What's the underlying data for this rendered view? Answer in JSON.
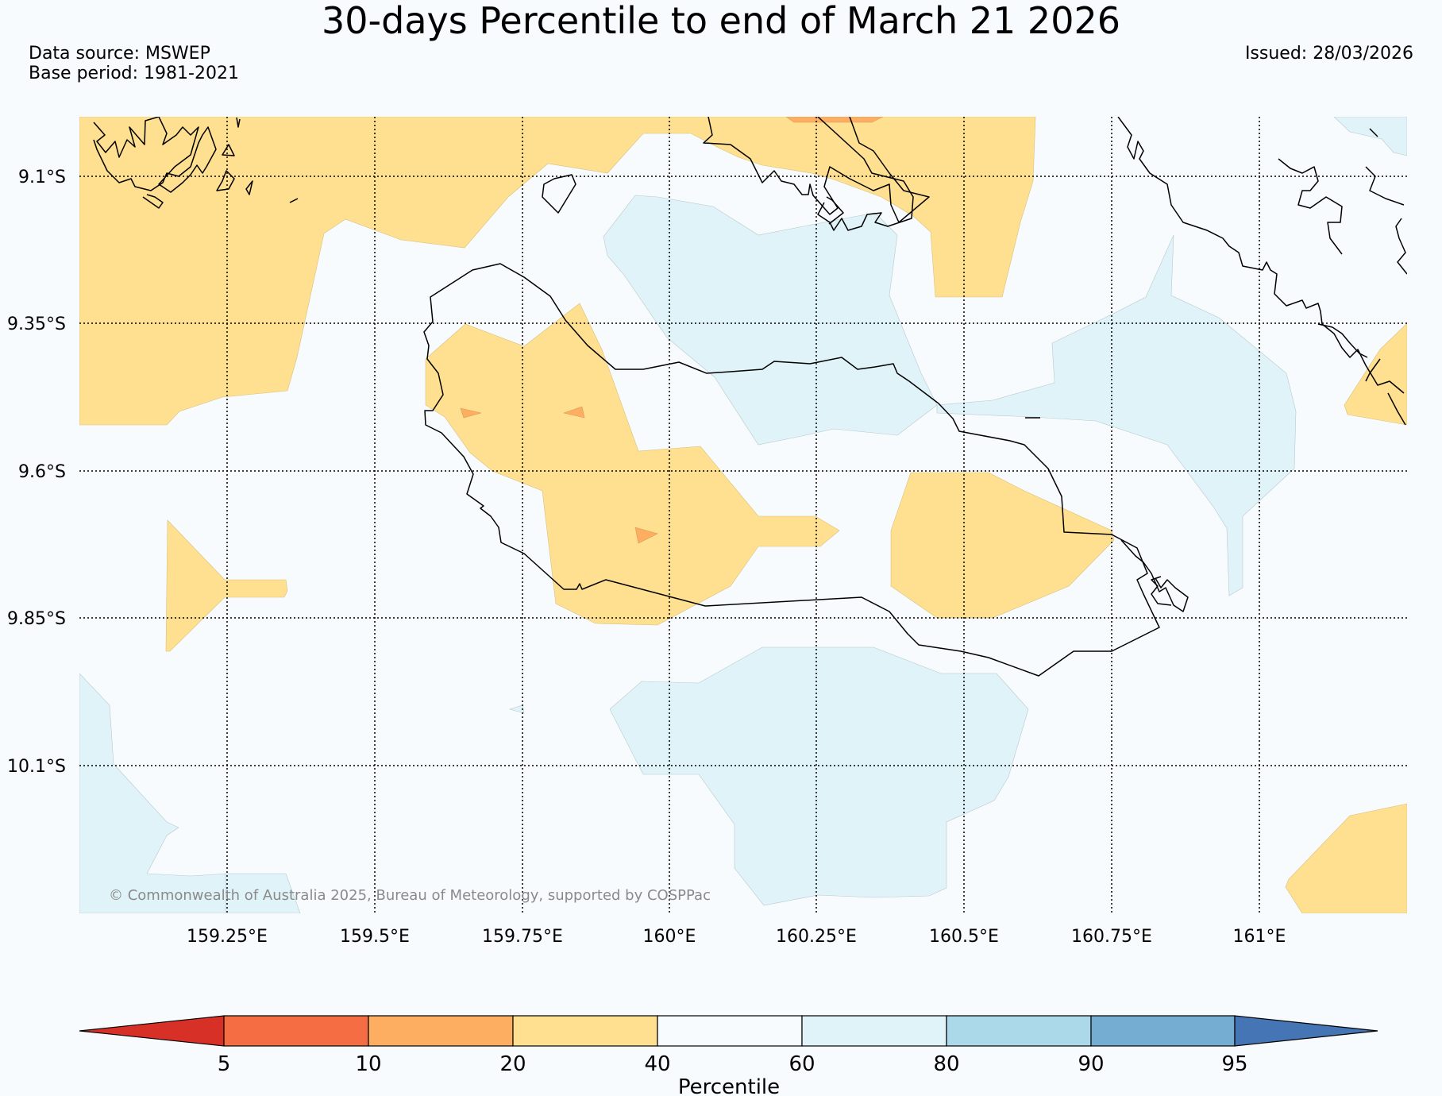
{
  "title": "30-days Percentile to end of March 21 2026",
  "data_source": "Data source: MSWEP",
  "base_period": "Base period: 1981-2021",
  "issued": "Issued: 28/03/2026",
  "copyright": "© Commonwealth of Australia 2025, Bureau of Meteorology, supported by COSPPac",
  "lat_labels": [
    "9.1°S",
    "9.35°S",
    "9.6°S",
    "9.85°S",
    "10.1°S"
  ],
  "lon_labels": [
    "159.25°E",
    "159.5°E",
    "159.75°E",
    "160°E",
    "160.25°E",
    "160.5°E",
    "160.75°E",
    "161°E"
  ],
  "colorbar": {
    "label": "Percentile",
    "ticks": [
      "5",
      "10",
      "20",
      "40",
      "60",
      "80",
      "90",
      "95"
    ],
    "colors": [
      "#d73027",
      "#f46d43",
      "#fdae61",
      "#fee090",
      "#f7fbfd",
      "#e0f3f8",
      "#abd9e9",
      "#74add1",
      "#4575b4"
    ]
  }
}
